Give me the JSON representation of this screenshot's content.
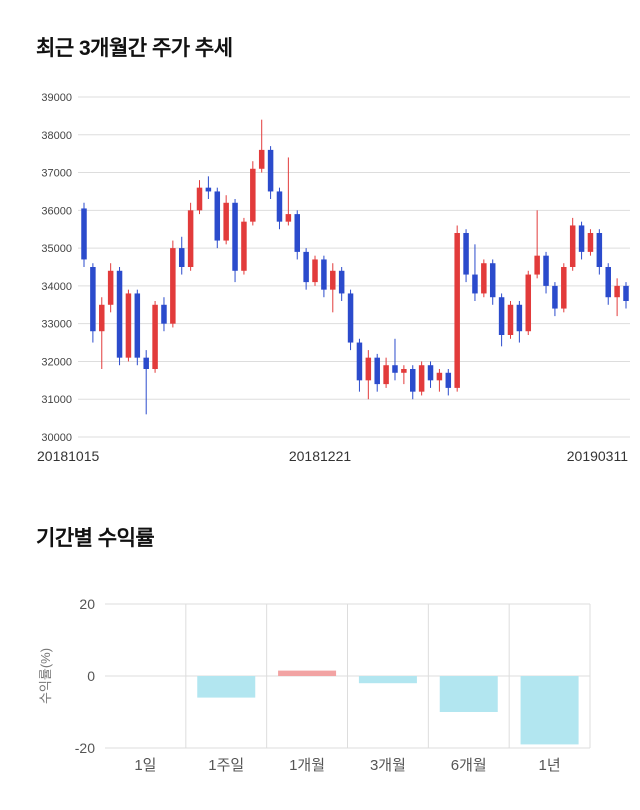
{
  "accent_colors": {
    "candle_up": "#e23b3b",
    "candle_down": "#2b4bcc",
    "bar_positive": "#f2a3a3",
    "bar_negative": "#b2e6f0",
    "grid": "#dddddd"
  },
  "chart_data": [
    {
      "type": "candlestick",
      "title": "최근 3개월간 주가 추세",
      "ylim": [
        30000,
        39000
      ],
      "yticks": [
        39000,
        38000,
        37000,
        36000,
        35000,
        34000,
        33000,
        32000,
        31000,
        30000
      ],
      "xticks": [
        "20181015",
        "20181221",
        "20190311"
      ],
      "grid": true,
      "up_color": "#e23b3b",
      "down_color": "#2b4bcc",
      "grid_color": "#dddddd",
      "candles_format": "[open, high, low, close]",
      "candles": [
        [
          36050,
          36200,
          34500,
          34700
        ],
        [
          34500,
          34600,
          32500,
          32800
        ],
        [
          32800,
          33700,
          31800,
          33500
        ],
        [
          33500,
          34600,
          33300,
          34400
        ],
        [
          34400,
          34500,
          31900,
          32100
        ],
        [
          32100,
          33900,
          32000,
          33800
        ],
        [
          33800,
          33900,
          31900,
          32100
        ],
        [
          32100,
          32300,
          30600,
          31800
        ],
        [
          31800,
          33600,
          31700,
          33500
        ],
        [
          33500,
          33700,
          32800,
          33000
        ],
        [
          33000,
          35200,
          32900,
          35000
        ],
        [
          35000,
          35300,
          34300,
          34500
        ],
        [
          34500,
          36200,
          34400,
          36000
        ],
        [
          36000,
          36800,
          35900,
          36600
        ],
        [
          36600,
          36900,
          36300,
          36500
        ],
        [
          36500,
          36600,
          35000,
          35200
        ],
        [
          35200,
          36400,
          35100,
          36200
        ],
        [
          36200,
          36300,
          34100,
          34400
        ],
        [
          34400,
          35800,
          34300,
          35700
        ],
        [
          35700,
          37300,
          35600,
          37100
        ],
        [
          37100,
          38400,
          37000,
          37600
        ],
        [
          37600,
          37700,
          36300,
          36500
        ],
        [
          36500,
          36600,
          35500,
          35700
        ],
        [
          35700,
          37400,
          35600,
          35900
        ],
        [
          35900,
          36000,
          34700,
          34900
        ],
        [
          34900,
          35000,
          33900,
          34100
        ],
        [
          34100,
          34800,
          34000,
          34700
        ],
        [
          34700,
          34800,
          33700,
          33900
        ],
        [
          33900,
          34600,
          33300,
          34400
        ],
        [
          34400,
          34500,
          33600,
          33800
        ],
        [
          33800,
          33900,
          32300,
          32500
        ],
        [
          32500,
          32600,
          31200,
          31500
        ],
        [
          31500,
          32300,
          31000,
          32100
        ],
        [
          32100,
          32200,
          31200,
          31400
        ],
        [
          31400,
          32100,
          31300,
          31900
        ],
        [
          31900,
          32600,
          31500,
          31700
        ],
        [
          31700,
          31900,
          31400,
          31800
        ],
        [
          31800,
          31900,
          31000,
          31200
        ],
        [
          31200,
          32000,
          31100,
          31900
        ],
        [
          31900,
          32000,
          31300,
          31500
        ],
        [
          31500,
          31800,
          31200,
          31700
        ],
        [
          31700,
          31800,
          31100,
          31300
        ],
        [
          31300,
          35600,
          31200,
          35400
        ],
        [
          35400,
          35500,
          34100,
          34300
        ],
        [
          34300,
          35100,
          33600,
          33800
        ],
        [
          33800,
          34700,
          33700,
          34600
        ],
        [
          34600,
          34700,
          33500,
          33700
        ],
        [
          33700,
          33800,
          32400,
          32700
        ],
        [
          32700,
          33600,
          32600,
          33500
        ],
        [
          33500,
          33600,
          32500,
          32800
        ],
        [
          32800,
          34400,
          32700,
          34300
        ],
        [
          34300,
          36000,
          34200,
          34800
        ],
        [
          34800,
          34900,
          33800,
          34000
        ],
        [
          34000,
          34100,
          33200,
          33400
        ],
        [
          33400,
          34600,
          33300,
          34500
        ],
        [
          34500,
          35800,
          34400,
          35600
        ],
        [
          35600,
          35700,
          34700,
          34900
        ],
        [
          34900,
          35500,
          34800,
          35400
        ],
        [
          35400,
          35500,
          34300,
          34500
        ],
        [
          34500,
          34600,
          33500,
          33700
        ],
        [
          33700,
          34200,
          33200,
          34000
        ],
        [
          34000,
          34100,
          33400,
          33600
        ]
      ]
    },
    {
      "type": "bar",
      "title": "기간별 수익률",
      "ylabel": "수익률(%)",
      "ylim": [
        -20,
        20
      ],
      "yticks": [
        20,
        0,
        -20
      ],
      "categories": [
        "1일",
        "1주일",
        "1개월",
        "3개월",
        "6개월",
        "1년"
      ],
      "values": [
        0,
        -6,
        1.5,
        -2,
        -10,
        -19
      ],
      "grid": true,
      "legend": "none",
      "positive_color": "#f2a3a3",
      "negative_color": "#b2e6f0",
      "grid_color": "#dddddd"
    }
  ]
}
